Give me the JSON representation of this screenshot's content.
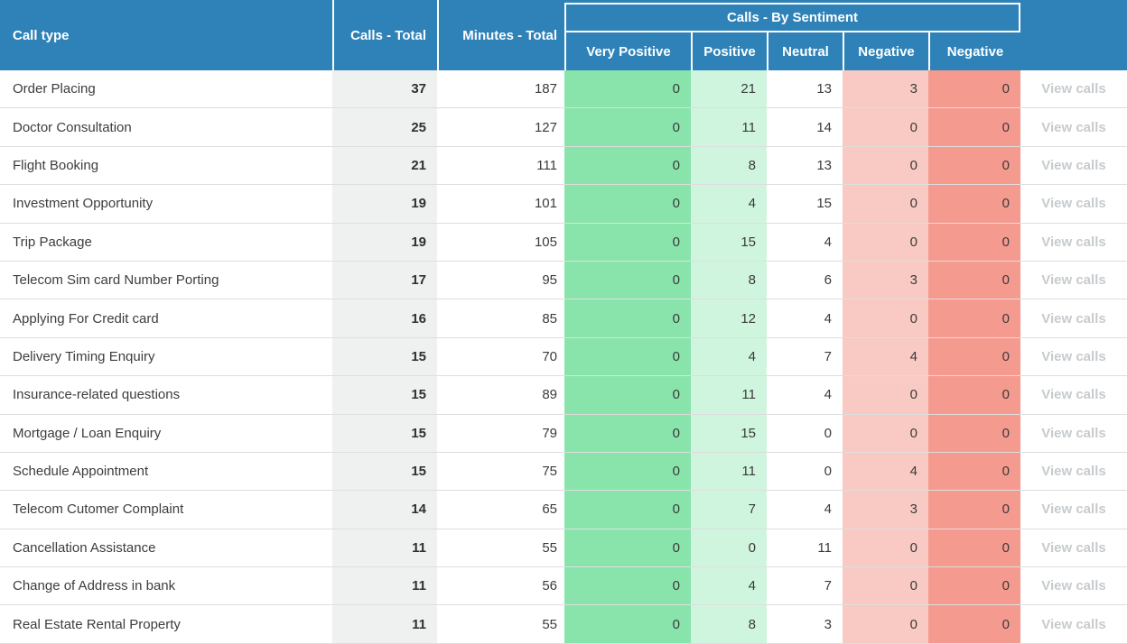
{
  "table": {
    "columns": {
      "call_type": "Call type",
      "calls_total": "Calls - Total",
      "minutes_total": "Minutes - Total",
      "sentiment_group": "Calls - By Sentiment",
      "sentiments": [
        "Very Positive",
        "Positive",
        "Neutral",
        "Negative",
        "Negative"
      ]
    },
    "view_calls_label": "View calls",
    "rows": [
      {
        "call_type": "Order Placing",
        "calls": "37",
        "minutes": "187",
        "very_positive": "0",
        "positive": "21",
        "neutral": "13",
        "negative": "3",
        "very_negative": "0"
      },
      {
        "call_type": "Doctor Consultation",
        "calls": "25",
        "minutes": "127",
        "very_positive": "0",
        "positive": "11",
        "neutral": "14",
        "negative": "0",
        "very_negative": "0"
      },
      {
        "call_type": "Flight Booking",
        "calls": "21",
        "minutes": "111",
        "very_positive": "0",
        "positive": "8",
        "neutral": "13",
        "negative": "0",
        "very_negative": "0"
      },
      {
        "call_type": "Investment Opportunity",
        "calls": "19",
        "minutes": "101",
        "very_positive": "0",
        "positive": "4",
        "neutral": "15",
        "negative": "0",
        "very_negative": "0"
      },
      {
        "call_type": "Trip Package",
        "calls": "19",
        "minutes": "105",
        "very_positive": "0",
        "positive": "15",
        "neutral": "4",
        "negative": "0",
        "very_negative": "0"
      },
      {
        "call_type": "Telecom Sim card Number Porting",
        "calls": "17",
        "minutes": "95",
        "very_positive": "0",
        "positive": "8",
        "neutral": "6",
        "negative": "3",
        "very_negative": "0"
      },
      {
        "call_type": "Applying For Credit card",
        "calls": "16",
        "minutes": "85",
        "very_positive": "0",
        "positive": "12",
        "neutral": "4",
        "negative": "0",
        "very_negative": "0"
      },
      {
        "call_type": "Delivery Timing Enquiry",
        "calls": "15",
        "minutes": "70",
        "very_positive": "0",
        "positive": "4",
        "neutral": "7",
        "negative": "4",
        "very_negative": "0"
      },
      {
        "call_type": "Insurance-related questions",
        "calls": "15",
        "minutes": "89",
        "very_positive": "0",
        "positive": "11",
        "neutral": "4",
        "negative": "0",
        "very_negative": "0"
      },
      {
        "call_type": "Mortgage / Loan Enquiry",
        "calls": "15",
        "minutes": "79",
        "very_positive": "0",
        "positive": "15",
        "neutral": "0",
        "negative": "0",
        "very_negative": "0"
      },
      {
        "call_type": "Schedule Appointment",
        "calls": "15",
        "minutes": "75",
        "very_positive": "0",
        "positive": "11",
        "neutral": "0",
        "negative": "4",
        "very_negative": "0"
      },
      {
        "call_type": "Telecom Cutomer Complaint",
        "calls": "14",
        "minutes": "65",
        "very_positive": "0",
        "positive": "7",
        "neutral": "4",
        "negative": "3",
        "very_negative": "0"
      },
      {
        "call_type": "Cancellation Assistance",
        "calls": "11",
        "minutes": "55",
        "very_positive": "0",
        "positive": "0",
        "neutral": "11",
        "negative": "0",
        "very_negative": "0"
      },
      {
        "call_type": "Change of Address in bank",
        "calls": "11",
        "minutes": "56",
        "very_positive": "0",
        "positive": "4",
        "neutral": "7",
        "negative": "0",
        "very_negative": "0"
      },
      {
        "call_type": "Real Estate Rental Property",
        "calls": "11",
        "minutes": "55",
        "very_positive": "0",
        "positive": "8",
        "neutral": "3",
        "negative": "0",
        "very_negative": "0"
      }
    ]
  },
  "colors": {
    "header_blue": "#2e82b8",
    "calls_total_column": "#eff1f1",
    "very_positive": "#89e4ac",
    "positive": "#cff5df",
    "negative": "#f8cac3",
    "very_negative": "#f59a8f",
    "view_calls_text": "#c7cbce"
  }
}
